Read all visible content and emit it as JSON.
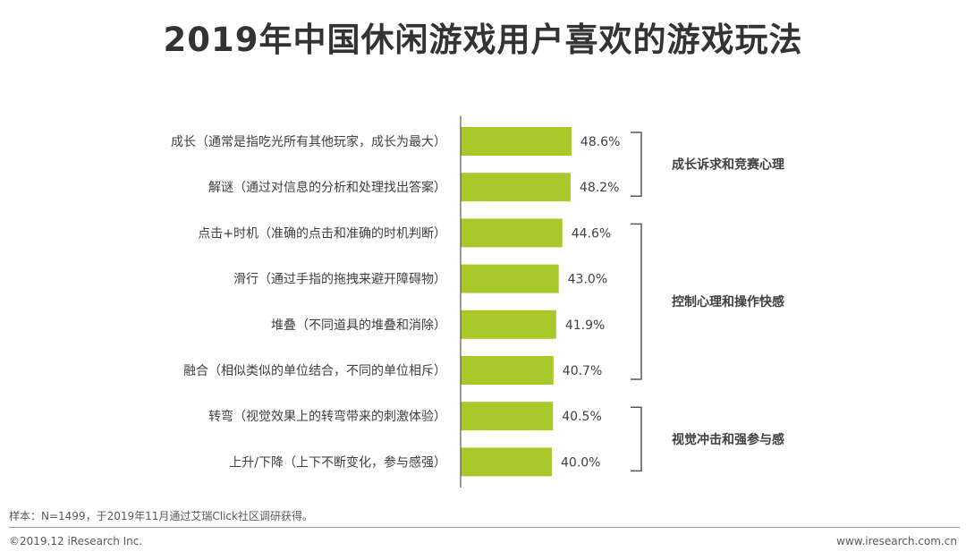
{
  "title": "2019年中国休闲游戏用户喜欢的游戏玩法",
  "chart_data": {
    "type": "bar",
    "orientation": "horizontal",
    "categories": [
      "成长（通常是指吃光所有其他玩家，成长为最大）",
      "解谜（通过对信息的分析和处理找出答案）",
      "点击+时机（准确的点击和准确的时机判断）",
      "滑行（通过手指的拖拽来避开障碍物）",
      "堆叠（不同道具的堆叠和消除）",
      "融合（相似类似的单位结合，不同的单位相斥）",
      "转弯（视觉效果上的转弯带来的刺激体验）",
      "上升/下降（上下不断变化，参与感强）"
    ],
    "values": [
      48.6,
      48.2,
      44.6,
      43.0,
      41.9,
      40.7,
      40.5,
      40.0
    ],
    "value_labels": [
      "48.6%",
      "48.2%",
      "44.6%",
      "43.0%",
      "41.9%",
      "40.7%",
      "40.5%",
      "40.0%"
    ],
    "bar_color": "#a9c92b",
    "axis_color": "#595959",
    "bracket_color": "#595959",
    "groups": [
      {
        "label": "成长诉求和竞赛心理",
        "start": 0,
        "end": 1
      },
      {
        "label": "控制心理和操作快感",
        "start": 2,
        "end": 5
      },
      {
        "label": "视觉冲击和强参与感",
        "start": 6,
        "end": 7
      }
    ]
  },
  "footer": {
    "note": "样本：N=1499，于2019年11月通过艾瑞Click社区调研获得。",
    "copyright": "©2019.12 iResearch Inc.",
    "website": "www.iresearch.com.cn"
  }
}
